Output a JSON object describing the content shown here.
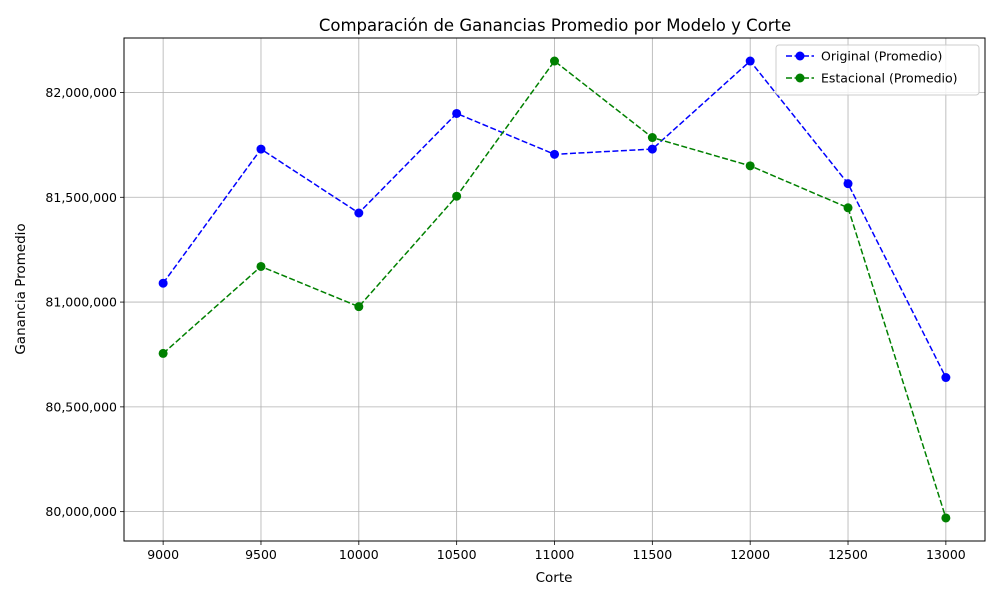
{
  "chart_data": {
    "type": "line",
    "title": "Comparación de Ganancias Promedio por Modelo y Corte",
    "xlabel": "Corte",
    "ylabel": "Ganancia Promedio",
    "x": [
      9000,
      9500,
      10000,
      10500,
      11000,
      11500,
      12000,
      12500,
      13000
    ],
    "x_ticks": [
      "9000",
      "9500",
      "10000",
      "10500",
      "11000",
      "11500",
      "12000",
      "12500",
      "13000"
    ],
    "y_ticks": [
      80000000,
      80500000,
      81000000,
      81500000,
      82000000
    ],
    "y_tick_labels": [
      "80,000,000",
      "80,500,000",
      "81,000,000",
      "81,500,000",
      "82,000,000"
    ],
    "xlim": [
      8800,
      13200
    ],
    "ylim": [
      79860000,
      82260000
    ],
    "grid": true,
    "legend_position": "top-right",
    "series": [
      {
        "name": "Original (Promedio)",
        "color": "#0000ff",
        "line_style": "dashed",
        "marker": "circle",
        "values": [
          81090000,
          81730000,
          81425000,
          81900000,
          81705000,
          81730000,
          82150000,
          81565000,
          80640000
        ]
      },
      {
        "name": "Estacional (Promedio)",
        "color": "#008000",
        "line_style": "dashed",
        "marker": "circle",
        "values": [
          80755000,
          81170000,
          80978000,
          81505000,
          82150000,
          81785000,
          81650000,
          81450000,
          79970000
        ]
      }
    ]
  }
}
